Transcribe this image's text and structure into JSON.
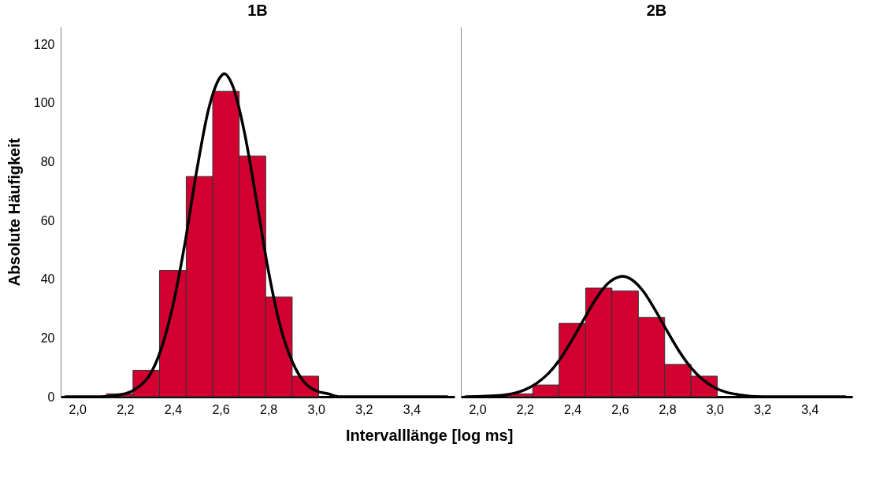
{
  "chart_data": [
    {
      "type": "histogram",
      "title": "1B",
      "xlabel": "Intervalllänge [log ms]",
      "ylabel": "Absolute Häufigkeit",
      "bins": [
        2.122,
        2.233,
        2.344,
        2.456,
        2.567,
        2.678,
        2.789,
        2.9,
        3.011
      ],
      "values": [
        1,
        9,
        43,
        75,
        104,
        82,
        34,
        7
      ],
      "color": "#d20030",
      "series": [
        {
          "type": "line",
          "color": "#000000",
          "x": [
            1.95,
            2.1,
            2.2,
            2.25,
            2.3,
            2.35,
            2.4,
            2.45,
            2.5,
            2.55,
            2.6,
            2.615,
            2.65,
            2.7,
            2.75,
            2.8,
            2.85,
            2.9,
            2.95,
            3.0,
            3.05,
            3.1,
            3.2,
            3.55
          ],
          "values": [
            0,
            0,
            1,
            3,
            7,
            16,
            31,
            52,
            77,
            98,
            109,
            110,
            106,
            90,
            67,
            43,
            24,
            12,
            5,
            2,
            1,
            0,
            0,
            0
          ]
        }
      ],
      "xlim": [
        1.93,
        3.58
      ],
      "xticks": [
        {
          "value": 2.0,
          "label": "2,0"
        },
        {
          "value": 2.2,
          "label": "2,2"
        },
        {
          "value": 2.4,
          "label": "2,4"
        },
        {
          "value": 2.6,
          "label": "2,6"
        },
        {
          "value": 2.8,
          "label": "2,8"
        },
        {
          "value": 3.0,
          "label": "3,0"
        },
        {
          "value": 3.2,
          "label": "3,2"
        },
        {
          "value": 3.4,
          "label": "3,4"
        }
      ],
      "ylim": [
        0,
        126
      ],
      "yticks": [
        0,
        20,
        40,
        60,
        80,
        100,
        120
      ]
    },
    {
      "type": "histogram",
      "title": "2B",
      "bins": [
        2.122,
        2.233,
        2.344,
        2.456,
        2.567,
        2.678,
        2.789,
        2.9,
        3.011
      ],
      "values": [
        1,
        4,
        25,
        37,
        36,
        27,
        11,
        7
      ],
      "color": "#d20030",
      "series": [
        {
          "type": "line",
          "color": "#000000",
          "x": [
            1.95,
            2.1,
            2.2,
            2.25,
            2.3,
            2.35,
            2.4,
            2.45,
            2.5,
            2.55,
            2.6,
            2.61,
            2.65,
            2.7,
            2.75,
            2.8,
            2.85,
            2.9,
            2.95,
            3.0,
            3.05,
            3.1,
            3.2,
            3.3,
            3.55
          ],
          "values": [
            0,
            0.5,
            2.4,
            4.6,
            8,
            13,
            19.5,
            26.6,
            33.4,
            38.6,
            40.9,
            41,
            39.9,
            35.8,
            29.4,
            22.3,
            15.5,
            9.9,
            5.8,
            3.1,
            1.5,
            0.7,
            0,
            0,
            0
          ]
        }
      ],
      "xlim": [
        1.93,
        3.58
      ],
      "xticks": [
        {
          "value": 2.0,
          "label": "2,0"
        },
        {
          "value": 2.2,
          "label": "2,2"
        },
        {
          "value": 2.4,
          "label": "2,4"
        },
        {
          "value": 2.6,
          "label": "2,6"
        },
        {
          "value": 2.8,
          "label": "2,8"
        },
        {
          "value": 3.0,
          "label": "3,0"
        },
        {
          "value": 3.2,
          "label": "3,2"
        },
        {
          "value": 3.4,
          "label": "3,4"
        }
      ],
      "ylim": [
        0,
        126
      ],
      "yticks": [
        0,
        20,
        40,
        60,
        80,
        100,
        120
      ],
      "tick_labels": "x"
    }
  ]
}
